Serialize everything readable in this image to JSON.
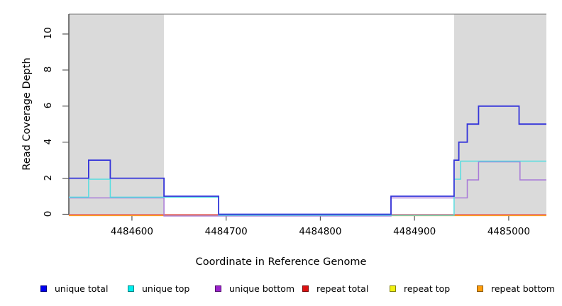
{
  "chart_data": {
    "type": "line",
    "subtype": "step-coverage",
    "title": "",
    "xlabel": "Coordinate in Reference Genome",
    "ylabel": "Read Coverage Depth",
    "xlim": [
      4484533,
      4485040
    ],
    "ylim": [
      0,
      11.1
    ],
    "x_ticks": [
      4484600,
      4484700,
      4484800,
      4484900,
      4485000
    ],
    "y_ticks": [
      0,
      2,
      4,
      6,
      8,
      10
    ],
    "grid": false,
    "legend_position": "bottom",
    "repeat_region_fill": "#dadada",
    "repeat_regions": [
      [
        4484533,
        4484634
      ],
      [
        4484942,
        4485040
      ]
    ],
    "series": [
      {
        "name": "unique-total",
        "label": "unique total",
        "line_color": "#3434d9",
        "swatch_color": "#0000ee",
        "start_value": 2,
        "steps": [
          [
            4484554,
            3
          ],
          [
            4484577,
            2
          ],
          [
            4484634,
            1
          ],
          [
            4484692,
            0
          ],
          [
            4484875,
            1
          ],
          [
            4484942,
            3
          ],
          [
            4484947,
            4
          ],
          [
            4484956,
            5
          ],
          [
            4484968,
            6
          ],
          [
            4485011,
            5
          ]
        ]
      },
      {
        "name": "unique-top",
        "label": "unique top",
        "line_color": "#55dde0",
        "swatch_color": "#00eeee",
        "start_value": 1,
        "steps": [
          [
            4484554,
            2
          ],
          [
            4484577,
            1
          ],
          [
            4484692,
            0
          ],
          [
            4484942,
            2
          ],
          [
            4484949,
            3
          ]
        ]
      },
      {
        "name": "unique-bottom",
        "label": "unique bottom",
        "line_color": "#a879d8",
        "swatch_color": "#9b22cc",
        "start_value": 1,
        "steps": [
          [
            4484634,
            0
          ],
          [
            4484875,
            1
          ],
          [
            4484956,
            2
          ],
          [
            4484968,
            3
          ],
          [
            4485012,
            2
          ]
        ]
      },
      {
        "name": "repeat-total",
        "label": "repeat total",
        "line_color": "#e05f72",
        "swatch_color": "#dd1111",
        "start_value": 0,
        "steps": []
      },
      {
        "name": "repeat-top",
        "label": "repeat top",
        "line_color": "#eded4a",
        "swatch_color": "#f0f011",
        "start_value": 0,
        "steps": []
      },
      {
        "name": "repeat-bottom",
        "label": "repeat bottom",
        "line_color": "#ffa01e",
        "swatch_color": "#ff9e0c",
        "start_value": 0,
        "steps": []
      }
    ]
  }
}
